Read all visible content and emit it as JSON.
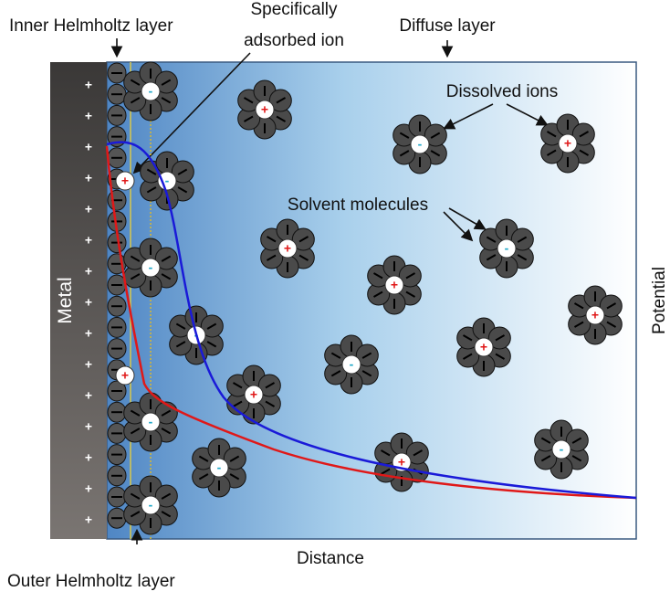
{
  "labels": {
    "inner_helmholtz": "Inner Helmholtz layer",
    "specifically_adsorbed": [
      "Specifically",
      "adsorbed ion"
    ],
    "diffuse": "Diffuse layer",
    "dissolved": "Dissolved ions",
    "solvent": "Solvent molecules",
    "metal": "Metal",
    "potential": "Potential",
    "distance": "Distance",
    "outer_helmholtz": "Outer Helmholtz layer"
  },
  "symbols": {
    "plus": "+",
    "minus": "-"
  }
}
